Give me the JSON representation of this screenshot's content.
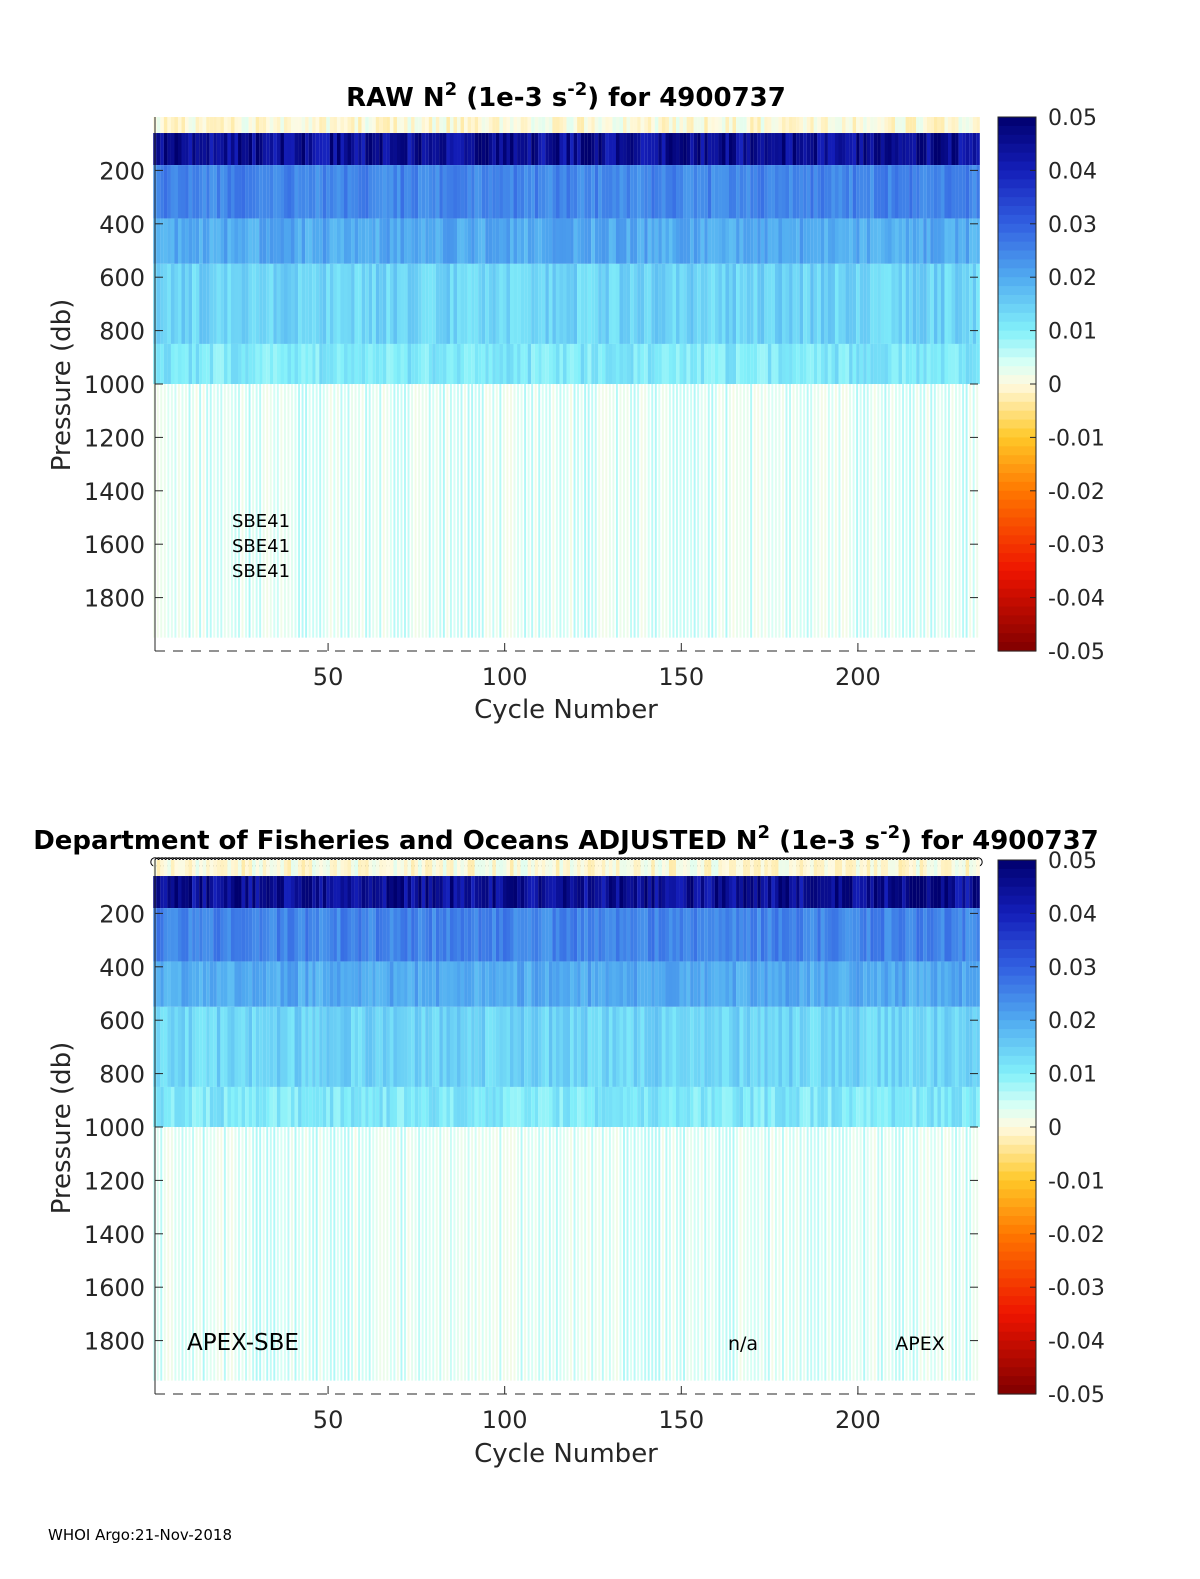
{
  "chart_data": [
    {
      "type": "heatmap",
      "title": {
        "prefix": "RAW N",
        "sup1": "2",
        "mid": " (1e-3 s",
        "sup2": "-2",
        "suffix": ") for 4900737"
      },
      "xlabel": "Cycle Number",
      "ylabel": "Pressure (db)",
      "xlim": [
        1,
        234
      ],
      "ylim": [
        2000,
        0
      ],
      "x_ticks": [
        "50",
        "100",
        "150",
        "200"
      ],
      "y_ticks": [
        "200",
        "400",
        "600",
        "800",
        "1000",
        "1200",
        "1400",
        "1600",
        "1800"
      ],
      "colorbar": {
        "range": [
          -0.05,
          0.05
        ],
        "ticks": [
          "0.05",
          "0.04",
          "0.03",
          "0.02",
          "0.01",
          "0",
          "-0.01",
          "-0.02",
          "-0.03",
          "-0.04",
          "-0.05"
        ]
      },
      "profile_bottom_db": 1950,
      "layers": [
        {
          "p_top": 0,
          "p_bottom": 60,
          "value": 0.0
        },
        {
          "p_top": 60,
          "p_bottom": 180,
          "value": 0.045
        },
        {
          "p_top": 180,
          "p_bottom": 380,
          "value": 0.025
        },
        {
          "p_top": 380,
          "p_bottom": 550,
          "value": 0.02
        },
        {
          "p_top": 550,
          "p_bottom": 850,
          "value": 0.014
        },
        {
          "p_top": 850,
          "p_bottom": 1000,
          "value": 0.011
        },
        {
          "p_top": 1000,
          "p_bottom": 1950,
          "value": 0.004
        }
      ],
      "annotations": [
        "SBE41",
        "SBE41",
        "SBE41"
      ]
    },
    {
      "type": "heatmap",
      "title": {
        "prefix": "Department of Fisheries and Oceans  ADJUSTED N",
        "sup1": "2",
        "mid": " (1e-3 s",
        "sup2": "-2",
        "suffix": ") for 4900737"
      },
      "xlabel": "Cycle Number",
      "ylabel": "Pressure (db)",
      "xlim": [
        1,
        234
      ],
      "ylim": [
        2000,
        0
      ],
      "x_ticks": [
        "50",
        "100",
        "150",
        "200"
      ],
      "y_ticks": [
        "200",
        "400",
        "600",
        "800",
        "1000",
        "1200",
        "1400",
        "1600",
        "1800"
      ],
      "colorbar": {
        "range": [
          -0.05,
          0.05
        ],
        "ticks": [
          "0.05",
          "0.04",
          "0.03",
          "0.02",
          "0.01",
          "0",
          "-0.01",
          "-0.02",
          "-0.03",
          "-0.04",
          "-0.05"
        ]
      },
      "profile_bottom_db": 1950,
      "layers": [
        {
          "p_top": 0,
          "p_bottom": 60,
          "value": 0.0
        },
        {
          "p_top": 60,
          "p_bottom": 180,
          "value": 0.045
        },
        {
          "p_top": 180,
          "p_bottom": 380,
          "value": 0.025
        },
        {
          "p_top": 380,
          "p_bottom": 550,
          "value": 0.02
        },
        {
          "p_top": 550,
          "p_bottom": 850,
          "value": 0.014
        },
        {
          "p_top": 850,
          "p_bottom": 1000,
          "value": 0.011
        },
        {
          "p_top": 1000,
          "p_bottom": 1950,
          "value": 0.004
        }
      ],
      "annotations": [
        "APEX-SBE",
        "n/a",
        "APEX"
      ]
    }
  ],
  "footer": "WHOI Argo:21-Nov-2018"
}
